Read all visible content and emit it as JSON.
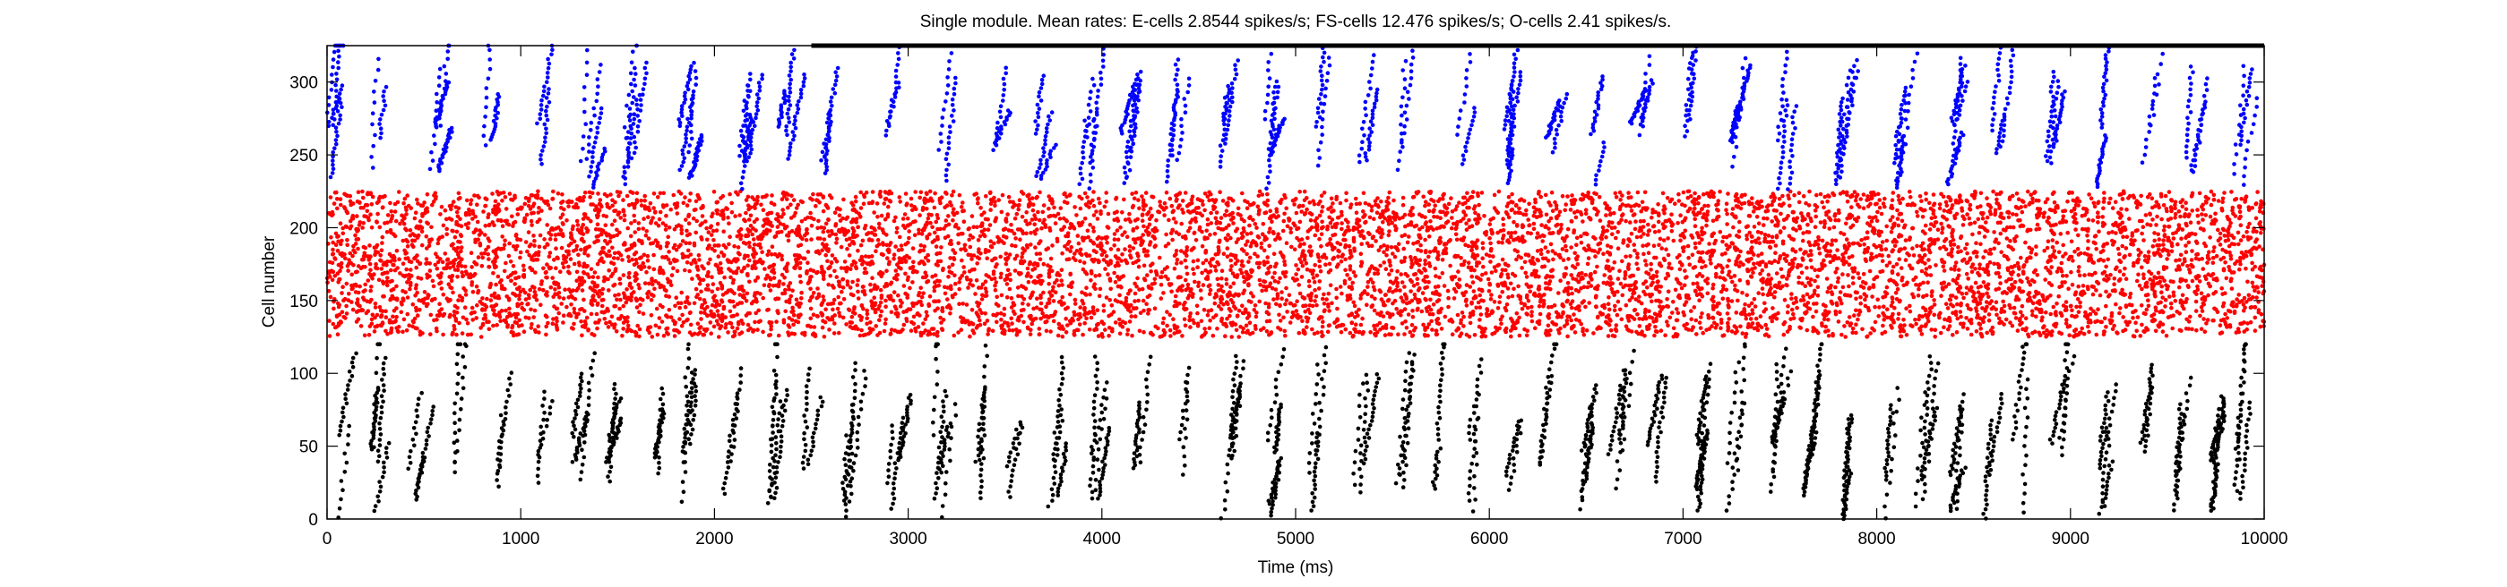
{
  "chart_data": {
    "type": "scatter",
    "title": "Single module. Mean rates: E-cells 2.8544 spikes/s; FS-cells 12.476 spikes/s; O-cells 2.41 spikes/s.",
    "xlabel": "Time (ms)",
    "ylabel": "Cell number",
    "xlim": [
      0,
      10000
    ],
    "ylim": [
      0,
      325
    ],
    "x_ticks": [
      0,
      1000,
      2000,
      3000,
      4000,
      5000,
      6000,
      7000,
      8000,
      9000,
      10000
    ],
    "y_ticks": [
      0,
      50,
      100,
      150,
      200,
      250,
      300
    ],
    "x_tick_labels": [
      "0",
      "1000",
      "2000",
      "3000",
      "4000",
      "5000",
      "6000",
      "7000",
      "8000",
      "9000",
      "10000"
    ],
    "y_tick_labels": [
      "0",
      "50",
      "100",
      "150",
      "200",
      "250",
      "300"
    ],
    "grid": false,
    "legend": "none",
    "series": [
      {
        "cell_range": [
          0,
          120
        ],
        "color": "#000000",
        "pattern": "sparse oblique bursts",
        "bursts_per_second_approx": 5,
        "population_rate_spikes_per_s": 2.8544
      },
      {
        "cell_range": [
          125,
          225
        ],
        "color": "#ff0000",
        "pattern": "dense continuous firing",
        "population_rate_spikes_per_s": 12.476
      },
      {
        "cell_range": [
          225,
          325
        ],
        "color": "#0000ff",
        "pattern": "sparse oblique bursts",
        "bursts_per_second_approx": 4,
        "population_rate_spikes_per_s": 2.41
      }
    ],
    "annotations": [
      {
        "type": "bar",
        "x_range": [
          2500,
          10000
        ],
        "y": 325,
        "color": "#000000"
      }
    ]
  }
}
